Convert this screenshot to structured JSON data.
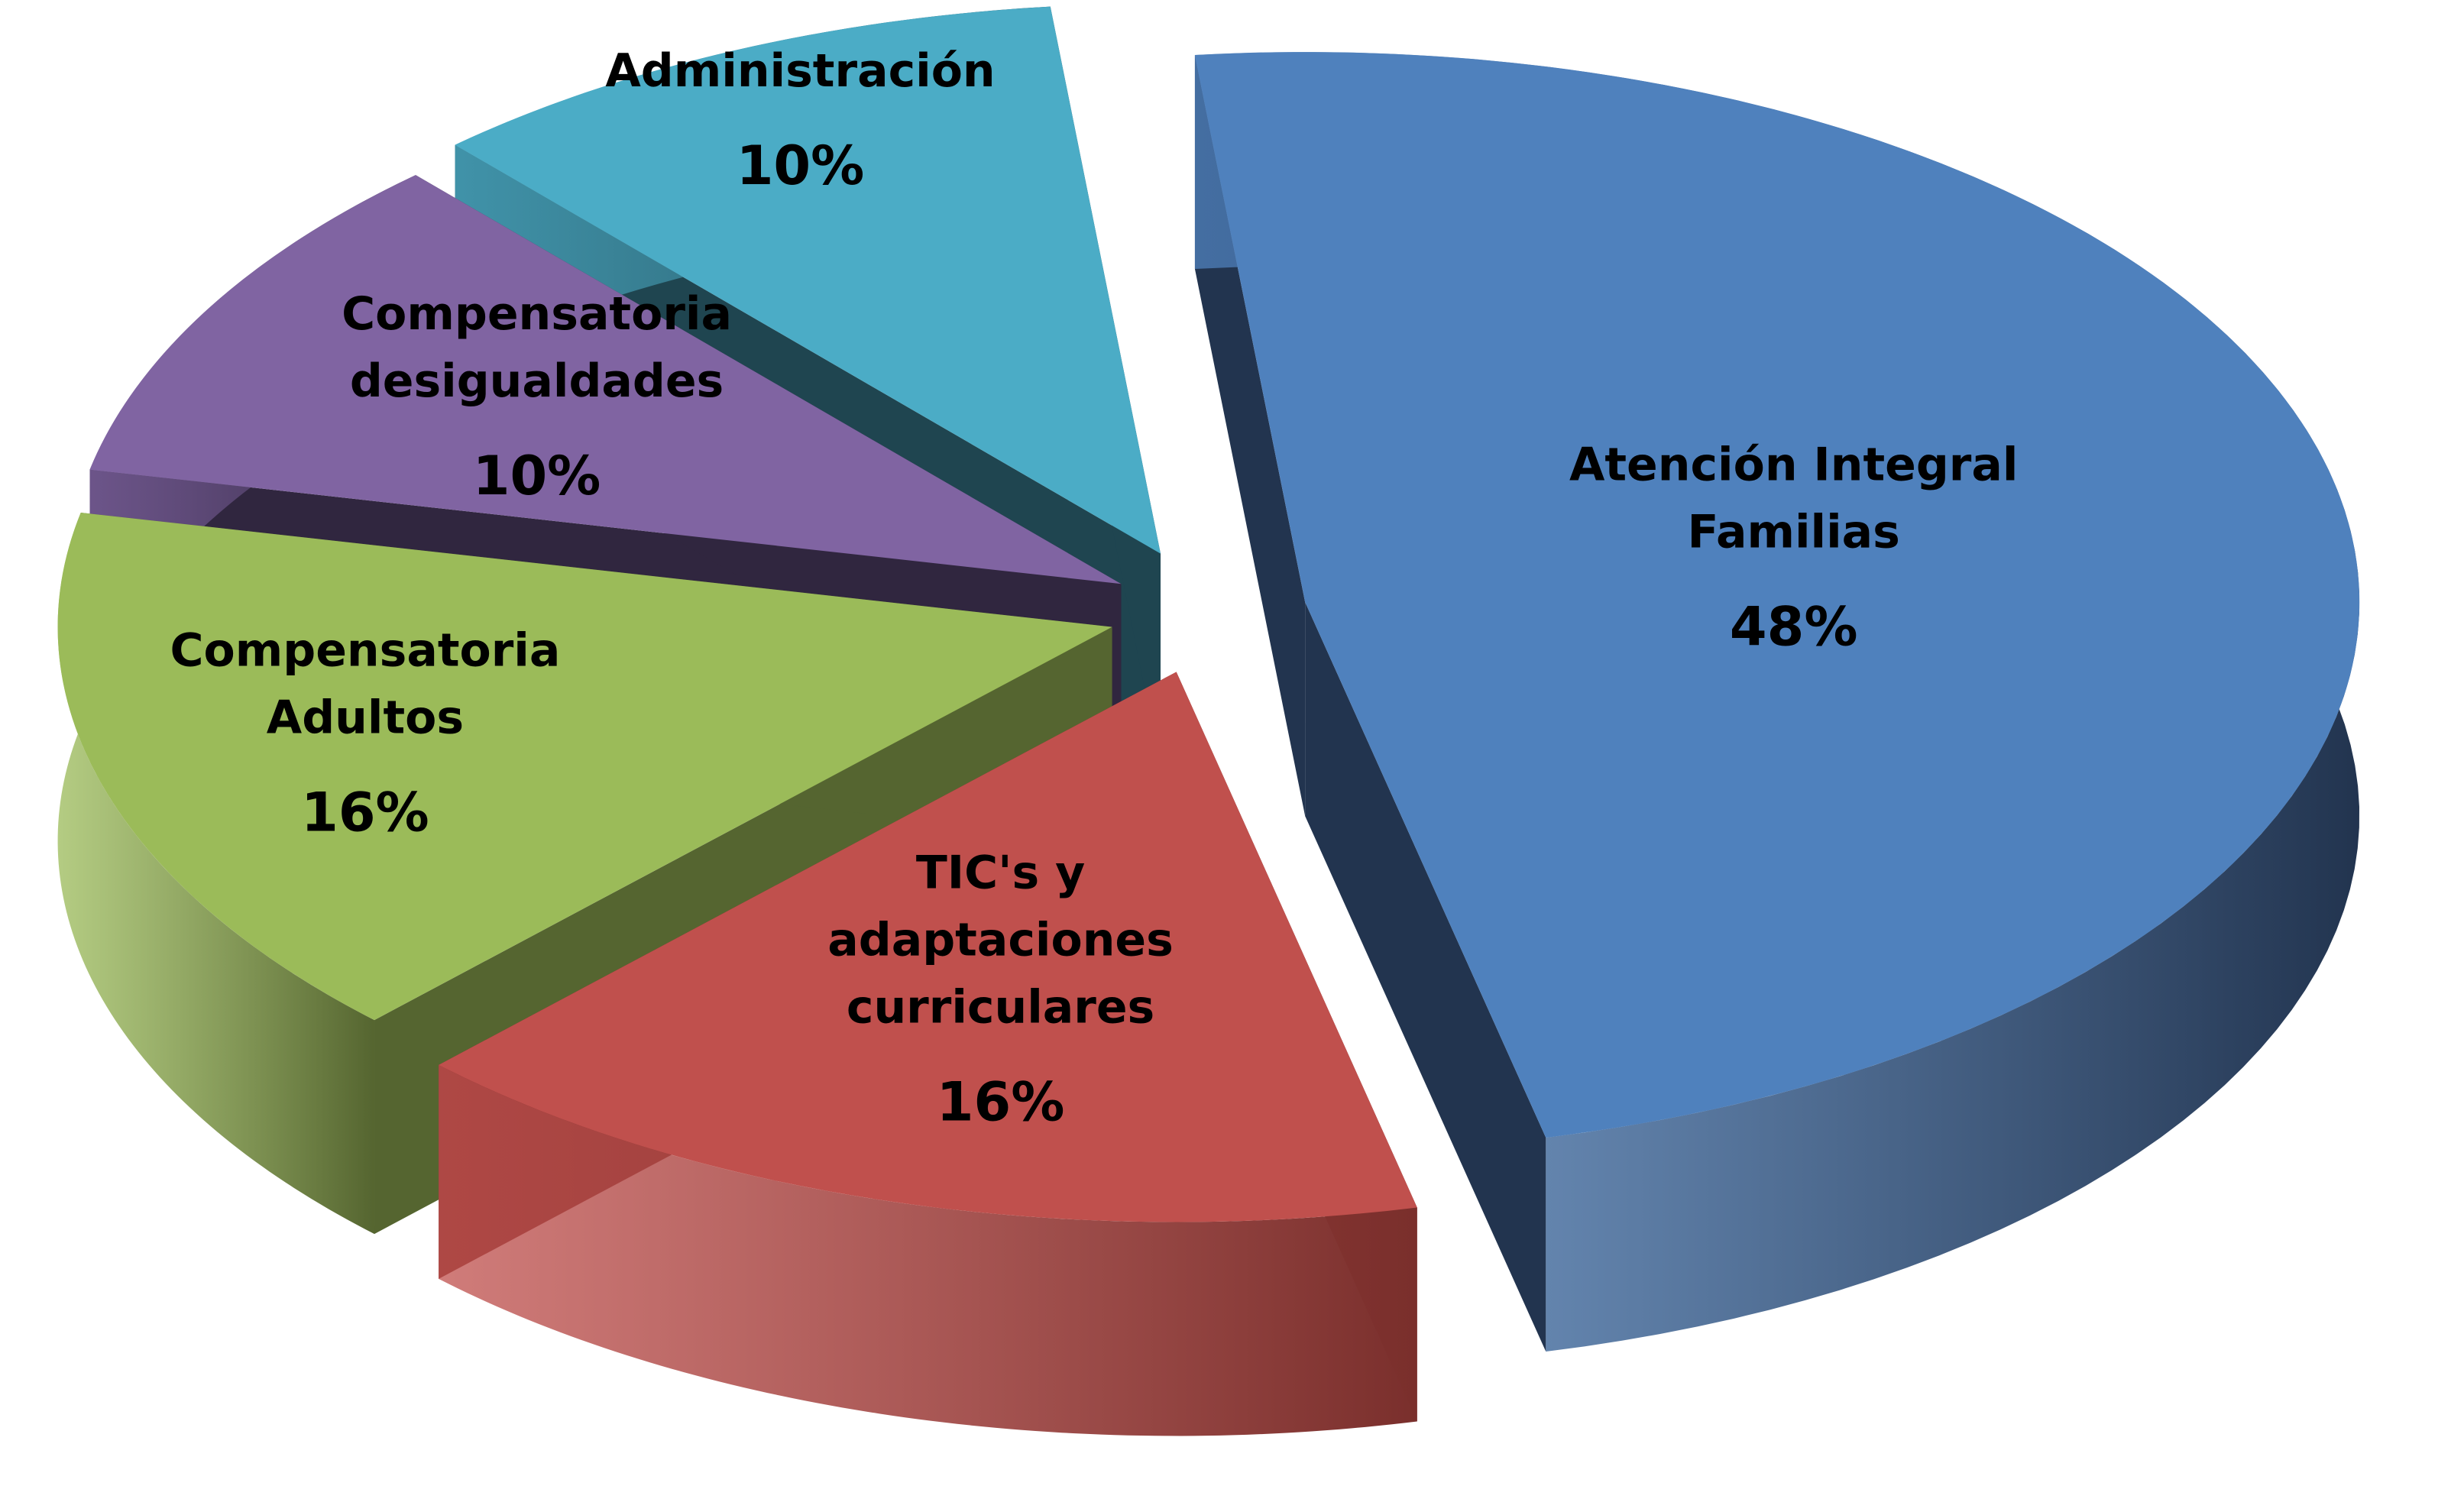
{
  "chart_data": {
    "type": "pie",
    "title": "",
    "style": "3d-exploded",
    "slices": [
      {
        "label_lines": [
          "Atención Integral",
          "Familias"
        ],
        "label": "Atención Integral Familias",
        "value": 48,
        "value_label": "48%",
        "color": "#4f81bd",
        "side_color": "#22344f"
      },
      {
        "label_lines": [
          "TIC's y",
          "adaptaciones",
          "curriculares"
        ],
        "label": "TIC's y adaptaciones curriculares",
        "value": 16,
        "value_label": "16%",
        "color": "#c0504d",
        "side_color": "#7a2f2c"
      },
      {
        "label_lines": [
          "Compensatoria",
          "Adultos"
        ],
        "label": "Compensatoria Adultos",
        "value": 16,
        "value_label": "16%",
        "color": "#9bbb59",
        "side_color": "#556530"
      },
      {
        "label_lines": [
          "Compensatoria",
          "desigualdades"
        ],
        "label": "Compensatoria desigualdades",
        "value": 10,
        "value_label": "10%",
        "color": "#8064a2",
        "side_color": "#30263f"
      },
      {
        "label_lines": [
          "Administración"
        ],
        "label": "Administración",
        "value": 10,
        "value_label": "10%",
        "color": "#4bacc6",
        "side_color": "#1f4550"
      }
    ]
  }
}
